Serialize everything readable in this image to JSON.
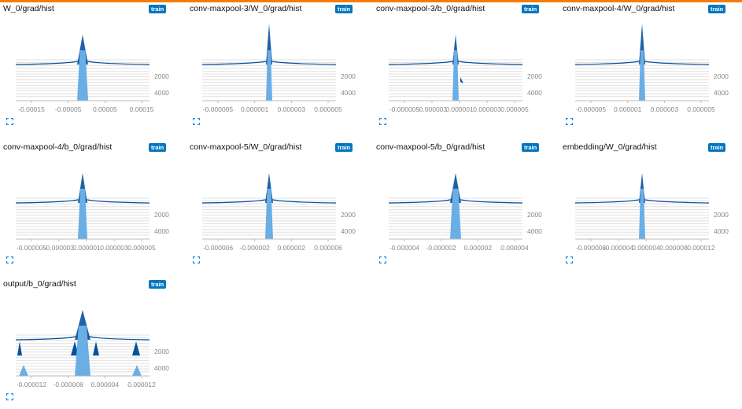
{
  "run_tag": "train",
  "icons": {
    "expand": "fullscreen-expand-icon"
  },
  "colors": {
    "accent_bar": "#f57c00",
    "badge": "#0277bd",
    "dark": "#08519c",
    "light": "#6aaee6"
  },
  "cards": [
    {
      "title": "W_0/grad/hist",
      "x_ticks": [
        "-0.00015",
        "-0.00005",
        "0.00005",
        "0.00015"
      ],
      "y_ticks": [
        "2000",
        "4000"
      ]
    },
    {
      "title": "conv-maxpool-3/W_0/grad/hist",
      "x_ticks": [
        "-0.000005",
        "0.000001",
        "0.000003",
        "0.000005"
      ],
      "y_ticks": [
        "2000",
        "4000"
      ]
    },
    {
      "title": "conv-maxpool-3/b_0/grad/hist",
      "x_ticks": [
        "-0.000005",
        "-0.000003",
        "0.000001",
        "0.000003",
        "0.000005"
      ],
      "y_ticks": [
        "2000",
        "4000"
      ]
    },
    {
      "title": "conv-maxpool-4/W_0/grad/hist",
      "x_ticks": [
        "-0.000005",
        "0.000001",
        "0.000003",
        "0.000005"
      ],
      "y_ticks": [
        "2000",
        "4000"
      ]
    },
    {
      "title": "conv-maxpool-4/b_0/grad/hist",
      "x_ticks": [
        "-0.000005",
        "-0.000003",
        "0.000001",
        "0.000003",
        "0.000005"
      ],
      "y_ticks": [
        "2000",
        "4000"
      ]
    },
    {
      "title": "conv-maxpool-5/W_0/grad/hist",
      "x_ticks": [
        "-0.000006",
        "-0.000002",
        "0.000002",
        "0.000006"
      ],
      "y_ticks": [
        "2000",
        "4000"
      ]
    },
    {
      "title": "conv-maxpool-5/b_0/grad/hist",
      "x_ticks": [
        "-0.000004",
        "-0.000002",
        "0.000002",
        "0.000004"
      ],
      "y_ticks": [
        "2000",
        "4000"
      ]
    },
    {
      "title": "embedding/W_0/grad/hist",
      "x_ticks": [
        "-0.000008",
        "-0.000004",
        "0.000004",
        "0.000008",
        "0.000012"
      ],
      "y_ticks": [
        "2000",
        "4000"
      ]
    },
    {
      "title": "output/b_0/grad/hist",
      "x_ticks": [
        "-0.000012",
        "-0.000008",
        "0.000004",
        "0.000012"
      ],
      "y_ticks": [
        "2000",
        "4000"
      ]
    }
  ]
}
